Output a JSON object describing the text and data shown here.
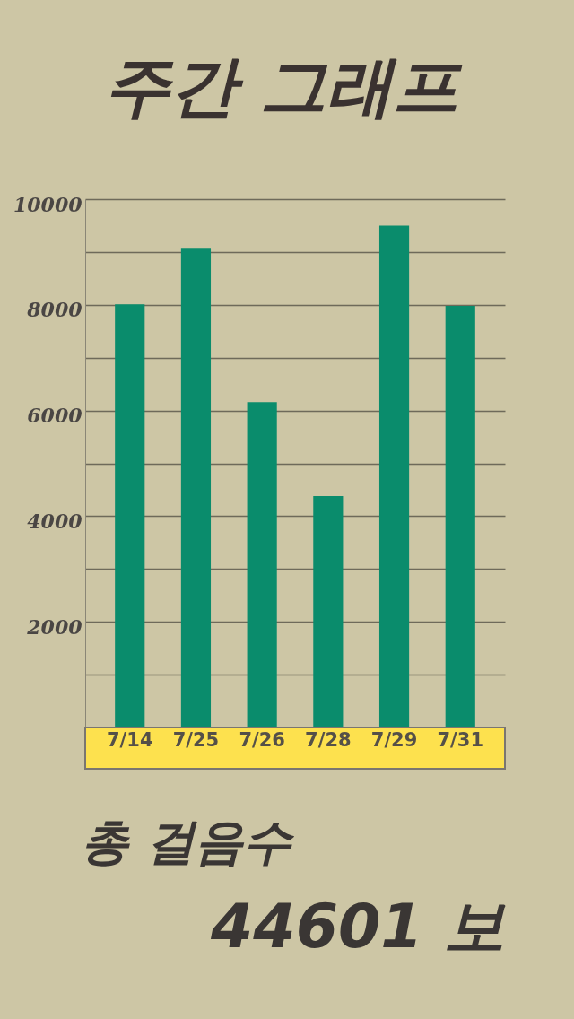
{
  "chart_data": {
    "type": "bar",
    "title": "주간 그래프",
    "categories": [
      "7/14",
      "7/25",
      "7/26",
      "7/28",
      "7/29",
      "7/31"
    ],
    "values": [
      8010,
      9060,
      6160,
      4380,
      9500,
      7980
    ],
    "color": "#0a8c6c",
    "ylim": [
      0,
      10000
    ],
    "yticks": [
      {
        "value": 1000,
        "label": null
      },
      2000,
      {
        "value": 3000,
        "label": null
      },
      4000,
      {
        "value": 5000,
        "label": null
      },
      6000,
      {
        "value": 7000,
        "label": null
      },
      8000,
      {
        "value": 9000,
        "label": null
      },
      10000
    ],
    "grid": "y",
    "annotations": [
      "총 걸음수",
      "44601 보"
    ]
  }
}
